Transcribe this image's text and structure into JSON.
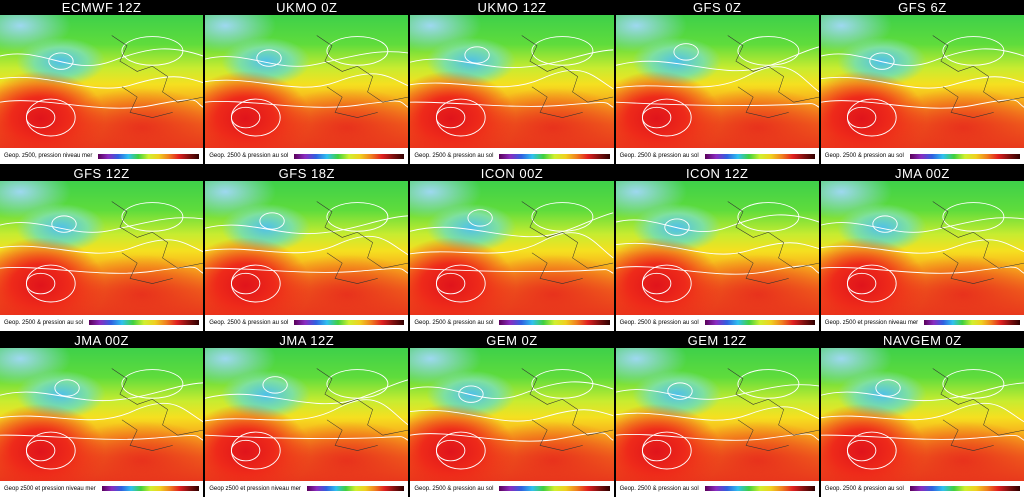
{
  "panels": [
    {
      "title": "ECMWF 12Z",
      "caption": "Geop. z500, pression niveau mer"
    },
    {
      "title": "UKMO 0Z",
      "caption": "Geop. 2500 & pression au sol"
    },
    {
      "title": "UKMO 12Z",
      "caption": "Geop. 2500 & pression au sol"
    },
    {
      "title": "GFS 0Z",
      "caption": "Geop. 2500 & pression au sol"
    },
    {
      "title": "GFS 6Z",
      "caption": "Geop. 2500 & pression au sol"
    },
    {
      "title": "GFS 12Z",
      "caption": "Geop. 2500 & pression au sol"
    },
    {
      "title": "GFS 18Z",
      "caption": "Geop. 2500 & pression au sol"
    },
    {
      "title": "ICON 00Z",
      "caption": "Geop. 2500 & pression au sol"
    },
    {
      "title": "ICON 12Z",
      "caption": "Geop. 2500 & pression au sol"
    },
    {
      "title": "JMA 00Z",
      "caption": "Geop. z500 et pression niveau mer"
    },
    {
      "title": "JMA 00Z",
      "caption": "Geop z500 et pression niveau mer"
    },
    {
      "title": "JMA 12Z",
      "caption": "Geop z500 et pression niveau mer"
    },
    {
      "title": "GEM 0Z",
      "caption": "Geop. 2500 & pression au sol"
    },
    {
      "title": "GEM 12Z",
      "caption": "Geop. 2500 & pression au sol"
    },
    {
      "title": "NAVGEM 0Z",
      "caption": "Geop. 2500 & pression au sol"
    }
  ]
}
